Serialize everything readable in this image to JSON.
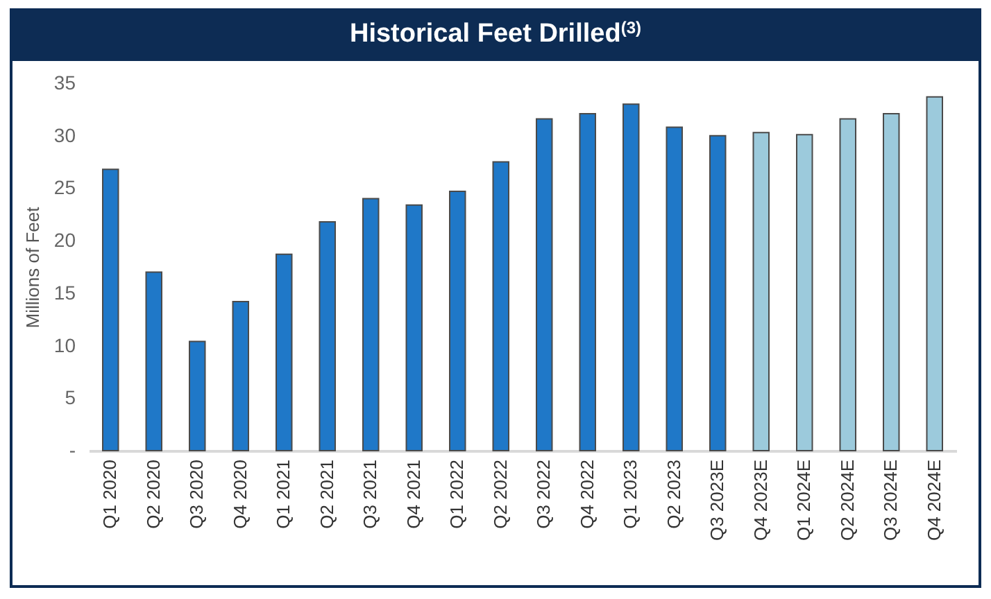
{
  "chart_data": {
    "type": "bar",
    "title": "Historical Feet Drilled$^{(3)}$",
    "ylabel": "Millions of Feet",
    "categories": [
      "Q1 2020",
      "Q2 2020",
      "Q3 2020",
      "Q4 2020",
      "Q1 2021",
      "Q2 2021",
      "Q3 2021",
      "Q4 2021",
      "Q1 2022",
      "Q2 2022",
      "Q3 2022",
      "Q4 2022",
      "Q1 2023",
      "Q2 2023",
      "Q3 2023E",
      "Q4 2023E",
      "Q1 2024E",
      "Q2 2024E",
      "Q3 2024E",
      "Q4 2024E"
    ],
    "values": [
      26.8,
      17.0,
      10.4,
      14.2,
      18.7,
      21.8,
      24.0,
      23.4,
      24.7,
      27.5,
      31.6,
      32.1,
      33.0,
      30.8,
      30.0,
      30.3,
      30.1,
      31.6,
      32.1,
      33.7
    ],
    "colors": [
      "#1f78c8",
      "#1f78c8",
      "#1f78c8",
      "#1f78c8",
      "#1f78c8",
      "#1f78c8",
      "#1f78c8",
      "#1f78c8",
      "#1f78c8",
      "#1f78c8",
      "#1f78c8",
      "#1f78c8",
      "#1f78c8",
      "#1f78c8",
      "#1f78c8",
      "#9ccadc",
      "#9ccadc",
      "#9ccadc",
      "#9ccadc",
      "#9ccadc"
    ],
    "ylim": [
      0,
      35
    ],
    "yticks": [
      {
        "value": 0,
        "label": "-"
      },
      5,
      10,
      15,
      20,
      25,
      30,
      35
    ],
    "grid": false
  }
}
